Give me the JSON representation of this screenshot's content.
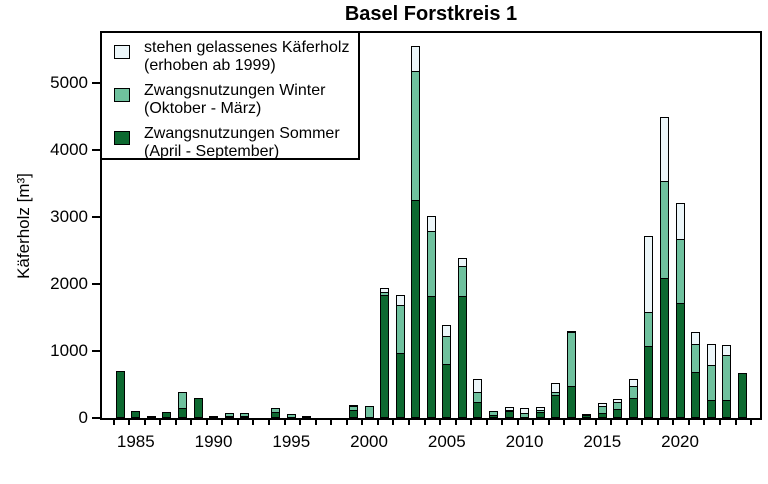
{
  "title": "Basel Forstkreis 1",
  "y_axis": {
    "label": "Käferholz [m³]",
    "ticks": [
      0,
      1000,
      2000,
      3000,
      4000,
      5000
    ],
    "tick_labels": [
      "0",
      "1000",
      "2000",
      "3000",
      "4000",
      "5000"
    ]
  },
  "x_axis": {
    "tick_labels": [
      "1985",
      "1990",
      "1995",
      "2000",
      "2005",
      "2010",
      "2015",
      "2020"
    ]
  },
  "legend": {
    "items": [
      {
        "label_line1": "stehen gelassenes Käferholz",
        "label_line2": "(erhoben ab 1999)",
        "color": "#ecf6f9"
      },
      {
        "label_line1": "Zwangsnutzungen Winter",
        "label_line2": "(Oktober - März)",
        "color": "#6fc19e"
      },
      {
        "label_line1": "Zwangsnutzungen Sommer",
        "label_line2": "(April - September)",
        "color": "#0d6930"
      }
    ]
  },
  "chart_data": {
    "type": "bar",
    "stacked": true,
    "stack_order": "bottom-to-top",
    "title": "Basel Forstkreis 1",
    "xlabel": "",
    "ylabel": "Käferholz [m³]",
    "ylim": [
      0,
      5800
    ],
    "ytick_interval": 1000,
    "grid": false,
    "legend_position": "top-left",
    "x": [
      1984,
      1985,
      1986,
      1987,
      1988,
      1989,
      1990,
      1991,
      1992,
      1993,
      1994,
      1995,
      1996,
      1997,
      1998,
      1999,
      2000,
      2001,
      2002,
      2003,
      2004,
      2005,
      2006,
      2007,
      2008,
      2009,
      2010,
      2011,
      2012,
      2013,
      2014,
      2015,
      2016,
      2017,
      2018,
      2019,
      2020,
      2021,
      2022,
      2023,
      2024
    ],
    "series": [
      {
        "name": "Zwangsnutzungen Sommer (April - September)",
        "color": "#0d6930",
        "values": [
          700,
          100,
          30,
          90,
          150,
          300,
          25,
          30,
          30,
          0,
          90,
          0,
          30,
          0,
          0,
          115,
          0,
          1830,
          975,
          3250,
          1825,
          805,
          1825,
          240,
          50,
          100,
          0,
          90,
          340,
          475,
          40,
          75,
          140,
          300,
          1075,
          2090,
          1710,
          690,
          275,
          275,
          675
        ]
      },
      {
        "name": "Zwangsnutzungen Winter (Oktober - März)",
        "color": "#6fc19e",
        "values": [
          0,
          0,
          0,
          0,
          250,
          0,
          0,
          55,
          55,
          0,
          75,
          60,
          0,
          0,
          0,
          80,
          180,
          60,
          720,
          1950,
          980,
          435,
          465,
          160,
          75,
          30,
          70,
          50,
          60,
          830,
          35,
          115,
          110,
          200,
          515,
          1470,
          980,
          435,
          525,
          685,
          0
        ]
      },
      {
        "name": "stehen gelassenes Käferholz (erhoben ab 1999)",
        "color": "#ecf6f9",
        "values": [
          0,
          0,
          0,
          0,
          0,
          0,
          0,
          0,
          0,
          0,
          0,
          0,
          0,
          0,
          0,
          20,
          0,
          80,
          170,
          380,
          235,
          175,
          125,
          215,
          0,
          60,
          100,
          60,
          150,
          20,
          0,
          70,
          60,
          110,
          1150,
          965,
          550,
          185,
          340,
          165,
          0
        ]
      }
    ]
  }
}
